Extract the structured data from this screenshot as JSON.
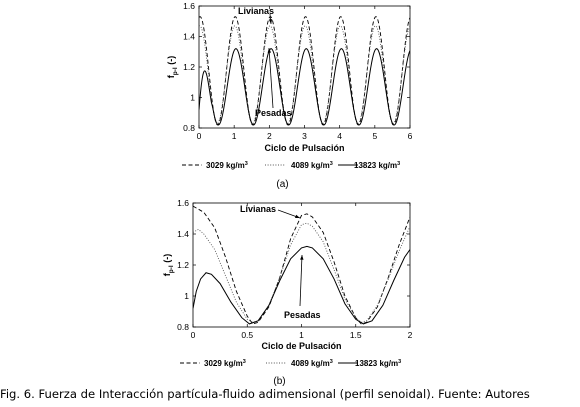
{
  "chart_data": [
    {
      "type": "line",
      "panel_label": "(a)",
      "xlabel": "Ciclo de Pulsación",
      "ylabel_main": "f",
      "ylabel_sub": "p-l",
      "ylabel_unit": "(-)",
      "xlim": [
        0,
        6
      ],
      "ylim": [
        0.8,
        1.6
      ],
      "xticks": [
        "0",
        "1",
        "2",
        "3",
        "4",
        "5",
        "6"
      ],
      "yticks": [
        "0.8",
        "1",
        "1.2",
        "1.4",
        "1.6"
      ],
      "grid": false,
      "legend_position": "bottom",
      "annotations": [
        {
          "text": "Livianas",
          "target_x": 2.0,
          "target_y": 1.51
        },
        {
          "text": "Pesadas",
          "target_x": 2.0,
          "target_y": 1.32
        }
      ],
      "series": [
        {
          "name": "3029 kg/m",
          "name_sup": "3",
          "style": "dashed",
          "description_values": {
            "period": 1.0,
            "max": 1.53,
            "min": 0.82,
            "phase_of_max": 0.03
          }
        },
        {
          "name": "4089 kg/m",
          "name_sup": "3",
          "style": "dotted",
          "description_values": {
            "period": 1.0,
            "max": 1.47,
            "min": 0.83,
            "phase_of_max": 0.02
          }
        },
        {
          "name": "13823 kg/m",
          "name_sup": "3",
          "style": "solid",
          "description_values": {
            "period": 1.0,
            "max": 1.32,
            "min": 0.82,
            "phase_of_max": 0.05,
            "start_value": 0.92
          }
        }
      ]
    },
    {
      "type": "line",
      "panel_label": "(b)",
      "xlabel": "Ciclo de Pulsación",
      "ylabel_main": "f",
      "ylabel_sub": "p-l",
      "ylabel_unit": "(-)",
      "xlim": [
        0,
        2
      ],
      "ylim": [
        0.8,
        1.6
      ],
      "xticks": [
        "0",
        "0.5",
        "1",
        "1.5",
        "2"
      ],
      "yticks": [
        "0.8",
        "1",
        "1.2",
        "1.4",
        "1.6"
      ],
      "grid": false,
      "legend_position": "bottom",
      "annotations": [
        {
          "text": "Livianas",
          "target_x": 1.0,
          "target_y": 1.51
        },
        {
          "text": "Pesadas",
          "target_x": 1.0,
          "target_y": 1.31
        }
      ],
      "series": [
        {
          "name": "3029 kg/m",
          "name_sup": "3",
          "style": "dashed",
          "points": [
            [
              0.0,
              1.58
            ],
            [
              0.1,
              1.54
            ],
            [
              0.2,
              1.44
            ],
            [
              0.3,
              1.25
            ],
            [
              0.4,
              1.03
            ],
            [
              0.5,
              0.87
            ],
            [
              0.55,
              0.82
            ],
            [
              0.6,
              0.83
            ],
            [
              0.7,
              0.93
            ],
            [
              0.8,
              1.12
            ],
            [
              0.9,
              1.37
            ],
            [
              1.0,
              1.52
            ],
            [
              1.05,
              1.53
            ],
            [
              1.1,
              1.51
            ],
            [
              1.2,
              1.41
            ],
            [
              1.3,
              1.22
            ],
            [
              1.4,
              1.0
            ],
            [
              1.5,
              0.86
            ],
            [
              1.55,
              0.82
            ],
            [
              1.6,
              0.83
            ],
            [
              1.7,
              0.93
            ],
            [
              1.8,
              1.12
            ],
            [
              1.9,
              1.33
            ],
            [
              2.0,
              1.51
            ]
          ]
        },
        {
          "name": "4089 kg/m",
          "name_sup": "3",
          "style": "dotted",
          "points": [
            [
              0.0,
              1.41
            ],
            [
              0.05,
              1.43
            ],
            [
              0.1,
              1.4
            ],
            [
              0.2,
              1.3
            ],
            [
              0.3,
              1.13
            ],
            [
              0.4,
              0.96
            ],
            [
              0.5,
              0.85
            ],
            [
              0.55,
              0.83
            ],
            [
              0.6,
              0.84
            ],
            [
              0.7,
              0.94
            ],
            [
              0.8,
              1.12
            ],
            [
              0.9,
              1.33
            ],
            [
              1.0,
              1.46
            ],
            [
              1.05,
              1.47
            ],
            [
              1.1,
              1.45
            ],
            [
              1.2,
              1.35
            ],
            [
              1.3,
              1.17
            ],
            [
              1.4,
              0.98
            ],
            [
              1.5,
              0.86
            ],
            [
              1.55,
              0.83
            ],
            [
              1.6,
              0.84
            ],
            [
              1.7,
              0.94
            ],
            [
              1.8,
              1.11
            ],
            [
              1.9,
              1.29
            ],
            [
              2.0,
              1.45
            ]
          ]
        },
        {
          "name": "13823 kg/m",
          "name_sup": "3",
          "style": "solid",
          "points": [
            [
              0.0,
              0.92
            ],
            [
              0.03,
              1.03
            ],
            [
              0.07,
              1.11
            ],
            [
              0.12,
              1.15
            ],
            [
              0.17,
              1.14
            ],
            [
              0.25,
              1.08
            ],
            [
              0.35,
              0.96
            ],
            [
              0.45,
              0.86
            ],
            [
              0.52,
              0.82
            ],
            [
              0.6,
              0.84
            ],
            [
              0.7,
              0.94
            ],
            [
              0.8,
              1.1
            ],
            [
              0.9,
              1.24
            ],
            [
              1.0,
              1.31
            ],
            [
              1.05,
              1.32
            ],
            [
              1.1,
              1.31
            ],
            [
              1.2,
              1.24
            ],
            [
              1.3,
              1.11
            ],
            [
              1.4,
              0.95
            ],
            [
              1.5,
              0.85
            ],
            [
              1.57,
              0.82
            ],
            [
              1.65,
              0.84
            ],
            [
              1.75,
              0.94
            ],
            [
              1.85,
              1.1
            ],
            [
              1.95,
              1.25
            ],
            [
              2.0,
              1.3
            ]
          ]
        }
      ]
    }
  ],
  "caption": "Fig. 6. Fuerza de Interacción partícula-fluido adimensional (perfil senoidal). Fuente: Autores"
}
